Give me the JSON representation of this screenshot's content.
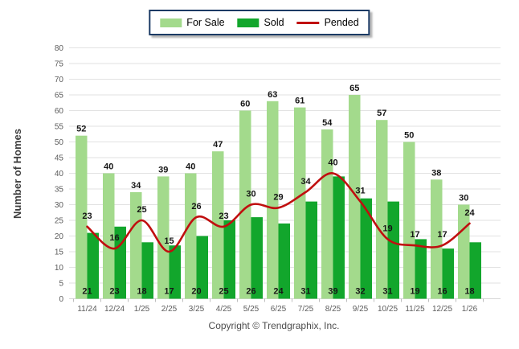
{
  "legend": {
    "items": [
      {
        "label": "For Sale"
      },
      {
        "label": "Sold"
      },
      {
        "label": "Pended"
      }
    ]
  },
  "footer": {
    "copyright": "Copyright © Trendgraphix, Inc."
  },
  "colors": {
    "for_sale": "#a3da8c",
    "sold": "#12a62c",
    "pended": "#c00f0f",
    "grid": "#e2e2e2",
    "tick_text": "#5c5c5c",
    "bar_label": "#161616",
    "legend_border": "#1b3a64",
    "axis_title": "#3d3d3d"
  },
  "chart_data": {
    "type": "bar",
    "title": "",
    "xlabel": "",
    "ylabel": "Number of Homes",
    "categories": [
      "11/24",
      "12/24",
      "1/25",
      "2/25",
      "3/25",
      "4/25",
      "5/25",
      "6/25",
      "7/25",
      "8/25",
      "9/25",
      "10/25",
      "11/25",
      "12/25",
      "1/26"
    ],
    "series": [
      {
        "name": "For Sale",
        "type": "bar",
        "color": "#a3da8c",
        "values": [
          52,
          40,
          34,
          39,
          40,
          47,
          60,
          63,
          61,
          54,
          65,
          57,
          50,
          38,
          30
        ]
      },
      {
        "name": "Sold",
        "type": "bar",
        "color": "#12a62c",
        "values": [
          21,
          23,
          18,
          17,
          20,
          25,
          26,
          24,
          31,
          39,
          32,
          31,
          19,
          16,
          18
        ]
      },
      {
        "name": "Pended",
        "type": "line",
        "color": "#c00f0f",
        "values": [
          23,
          16,
          25,
          15,
          26,
          23,
          30,
          29,
          34,
          40,
          31,
          19,
          17,
          17,
          24
        ]
      }
    ],
    "ylim": [
      0,
      80
    ],
    "yticks": [
      0,
      5,
      10,
      15,
      20,
      25,
      30,
      35,
      40,
      45,
      50,
      55,
      60,
      65,
      70,
      75,
      80
    ],
    "grid": "horizontal",
    "legend_position": "top-center",
    "value_labels": true
  }
}
